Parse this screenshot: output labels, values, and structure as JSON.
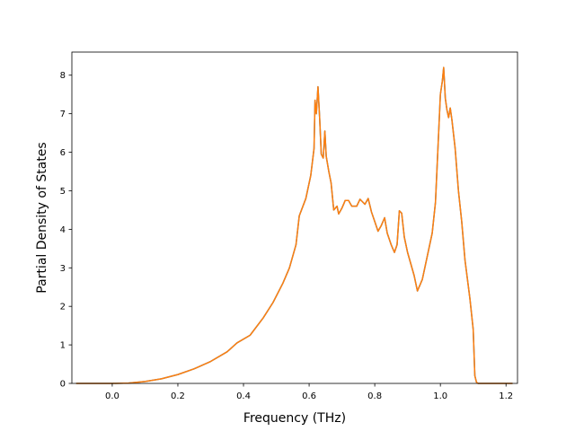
{
  "chart_data": {
    "type": "line",
    "title": "",
    "xlabel": "Frequency (THz)",
    "ylabel": "Partial Density of States",
    "xlim": [
      -0.123,
      1.235
    ],
    "ylim": [
      0,
      8.6
    ],
    "grid": false,
    "legend": "none",
    "xticks": [
      0.0,
      0.2,
      0.4,
      0.6,
      0.8,
      1.0,
      1.2
    ],
    "xtick_labels": [
      "0.0",
      "0.2",
      "0.4",
      "0.6",
      "0.8",
      "1.0",
      "1.2"
    ],
    "yticks": [
      0,
      1,
      2,
      3,
      4,
      5,
      6,
      7,
      8
    ],
    "ytick_labels": [
      "0",
      "1",
      "2",
      "3",
      "4",
      "5",
      "6",
      "7",
      "8"
    ],
    "series": [
      {
        "color": "#1f77b4",
        "points": [
          [
            -0.11,
            0
          ],
          [
            0.0,
            0
          ],
          [
            0.05,
            0.01
          ],
          [
            0.1,
            0.05
          ],
          [
            0.15,
            0.12
          ],
          [
            0.2,
            0.23
          ],
          [
            0.25,
            0.38
          ],
          [
            0.3,
            0.57
          ],
          [
            0.35,
            0.82
          ],
          [
            0.38,
            1.05
          ],
          [
            0.42,
            1.25
          ],
          [
            0.46,
            1.7
          ],
          [
            0.49,
            2.1
          ],
          [
            0.52,
            2.6
          ],
          [
            0.54,
            3.0
          ],
          [
            0.56,
            3.6
          ],
          [
            0.57,
            4.35
          ],
          [
            0.59,
            4.8
          ],
          [
            0.605,
            5.4
          ],
          [
            0.615,
            6.1
          ],
          [
            0.618,
            7.35
          ],
          [
            0.622,
            7.0
          ],
          [
            0.627,
            7.7
          ],
          [
            0.632,
            6.9
          ],
          [
            0.637,
            5.95
          ],
          [
            0.643,
            5.85
          ],
          [
            0.648,
            6.55
          ],
          [
            0.652,
            5.9
          ],
          [
            0.66,
            5.5
          ],
          [
            0.667,
            5.2
          ],
          [
            0.675,
            4.5
          ],
          [
            0.685,
            4.6
          ],
          [
            0.69,
            4.4
          ],
          [
            0.7,
            4.55
          ],
          [
            0.71,
            4.75
          ],
          [
            0.72,
            4.75
          ],
          [
            0.73,
            4.6
          ],
          [
            0.745,
            4.6
          ],
          [
            0.755,
            4.78
          ],
          [
            0.77,
            4.65
          ],
          [
            0.78,
            4.8
          ],
          [
            0.79,
            4.45
          ],
          [
            0.8,
            4.2
          ],
          [
            0.81,
            3.95
          ],
          [
            0.82,
            4.1
          ],
          [
            0.83,
            4.3
          ],
          [
            0.838,
            3.9
          ],
          [
            0.85,
            3.6
          ],
          [
            0.86,
            3.4
          ],
          [
            0.868,
            3.6
          ],
          [
            0.875,
            4.48
          ],
          [
            0.882,
            4.42
          ],
          [
            0.89,
            3.8
          ],
          [
            0.9,
            3.4
          ],
          [
            0.91,
            3.1
          ],
          [
            0.92,
            2.8
          ],
          [
            0.93,
            2.4
          ],
          [
            0.945,
            2.7
          ],
          [
            0.96,
            3.3
          ],
          [
            0.975,
            3.9
          ],
          [
            0.985,
            4.7
          ],
          [
            0.992,
            6.0
          ],
          [
            1.0,
            7.5
          ],
          [
            1.006,
            7.85
          ],
          [
            1.01,
            8.2
          ],
          [
            1.015,
            7.4
          ],
          [
            1.02,
            7.1
          ],
          [
            1.025,
            6.9
          ],
          [
            1.03,
            7.15
          ],
          [
            1.035,
            6.85
          ],
          [
            1.045,
            6.1
          ],
          [
            1.055,
            5.0
          ],
          [
            1.065,
            4.2
          ],
          [
            1.075,
            3.2
          ],
          [
            1.09,
            2.2
          ],
          [
            1.1,
            1.4
          ],
          [
            1.105,
            0.2
          ],
          [
            1.11,
            0.03
          ],
          [
            1.115,
            0
          ],
          [
            1.22,
            0
          ]
        ]
      },
      {
        "color": "#ff7f0e",
        "points": [
          [
            -0.11,
            0
          ],
          [
            0.0,
            0
          ],
          [
            0.05,
            0.01
          ],
          [
            0.1,
            0.05
          ],
          [
            0.15,
            0.12
          ],
          [
            0.2,
            0.23
          ],
          [
            0.25,
            0.38
          ],
          [
            0.3,
            0.57
          ],
          [
            0.35,
            0.82
          ],
          [
            0.38,
            1.05
          ],
          [
            0.42,
            1.25
          ],
          [
            0.46,
            1.7
          ],
          [
            0.49,
            2.1
          ],
          [
            0.52,
            2.6
          ],
          [
            0.54,
            3.0
          ],
          [
            0.56,
            3.6
          ],
          [
            0.57,
            4.35
          ],
          [
            0.59,
            4.8
          ],
          [
            0.605,
            5.4
          ],
          [
            0.615,
            6.1
          ],
          [
            0.618,
            7.35
          ],
          [
            0.622,
            7.0
          ],
          [
            0.627,
            7.7
          ],
          [
            0.632,
            6.9
          ],
          [
            0.637,
            5.95
          ],
          [
            0.643,
            5.85
          ],
          [
            0.648,
            6.55
          ],
          [
            0.652,
            5.9
          ],
          [
            0.66,
            5.5
          ],
          [
            0.667,
            5.2
          ],
          [
            0.675,
            4.5
          ],
          [
            0.685,
            4.6
          ],
          [
            0.69,
            4.4
          ],
          [
            0.7,
            4.55
          ],
          [
            0.71,
            4.75
          ],
          [
            0.72,
            4.75
          ],
          [
            0.73,
            4.6
          ],
          [
            0.745,
            4.6
          ],
          [
            0.755,
            4.78
          ],
          [
            0.77,
            4.65
          ],
          [
            0.78,
            4.8
          ],
          [
            0.79,
            4.45
          ],
          [
            0.8,
            4.2
          ],
          [
            0.81,
            3.95
          ],
          [
            0.82,
            4.1
          ],
          [
            0.83,
            4.3
          ],
          [
            0.838,
            3.9
          ],
          [
            0.85,
            3.6
          ],
          [
            0.86,
            3.4
          ],
          [
            0.868,
            3.6
          ],
          [
            0.875,
            4.48
          ],
          [
            0.882,
            4.42
          ],
          [
            0.89,
            3.8
          ],
          [
            0.9,
            3.4
          ],
          [
            0.91,
            3.1
          ],
          [
            0.92,
            2.8
          ],
          [
            0.93,
            2.4
          ],
          [
            0.945,
            2.7
          ],
          [
            0.96,
            3.3
          ],
          [
            0.975,
            3.9
          ],
          [
            0.985,
            4.7
          ],
          [
            0.992,
            6.0
          ],
          [
            1.0,
            7.5
          ],
          [
            1.006,
            7.85
          ],
          [
            1.01,
            8.2
          ],
          [
            1.015,
            7.4
          ],
          [
            1.02,
            7.1
          ],
          [
            1.025,
            6.9
          ],
          [
            1.03,
            7.15
          ],
          [
            1.035,
            6.85
          ],
          [
            1.045,
            6.1
          ],
          [
            1.055,
            5.0
          ],
          [
            1.065,
            4.2
          ],
          [
            1.075,
            3.2
          ],
          [
            1.09,
            2.2
          ],
          [
            1.1,
            1.4
          ],
          [
            1.105,
            0.2
          ],
          [
            1.11,
            0.03
          ],
          [
            1.115,
            0
          ],
          [
            1.22,
            0
          ]
        ]
      }
    ]
  }
}
